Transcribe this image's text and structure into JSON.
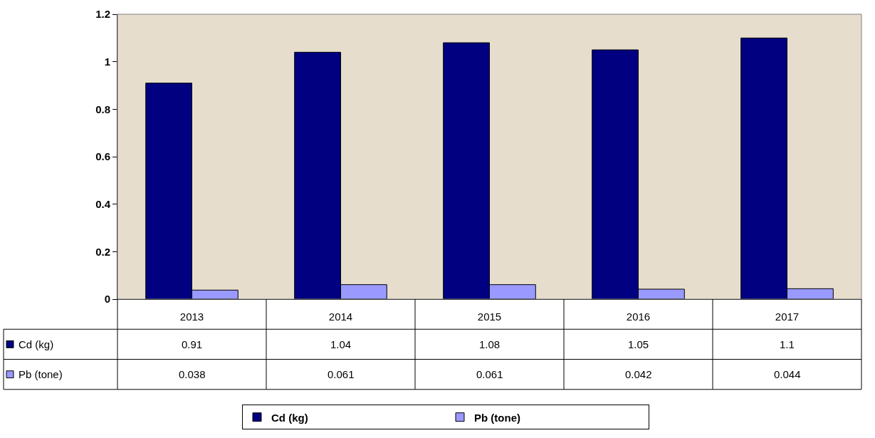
{
  "chart_data": {
    "type": "bar",
    "categories": [
      "2013",
      "2014",
      "2015",
      "2016",
      "2017"
    ],
    "series": [
      {
        "name": "Cd (kg)",
        "color": "#000080",
        "values": [
          0.91,
          1.04,
          1.08,
          1.05,
          1.1
        ]
      },
      {
        "name": "Pb (tone)",
        "color": "#9999ff",
        "values": [
          0.038,
          0.061,
          0.061,
          0.042,
          0.044
        ]
      }
    ],
    "ylim": [
      0,
      1.2
    ],
    "yticks": [
      0,
      0.2,
      0.4,
      0.6,
      0.8,
      1,
      1.2
    ],
    "grid": false,
    "legend": "bottom",
    "data_labels": true
  }
}
